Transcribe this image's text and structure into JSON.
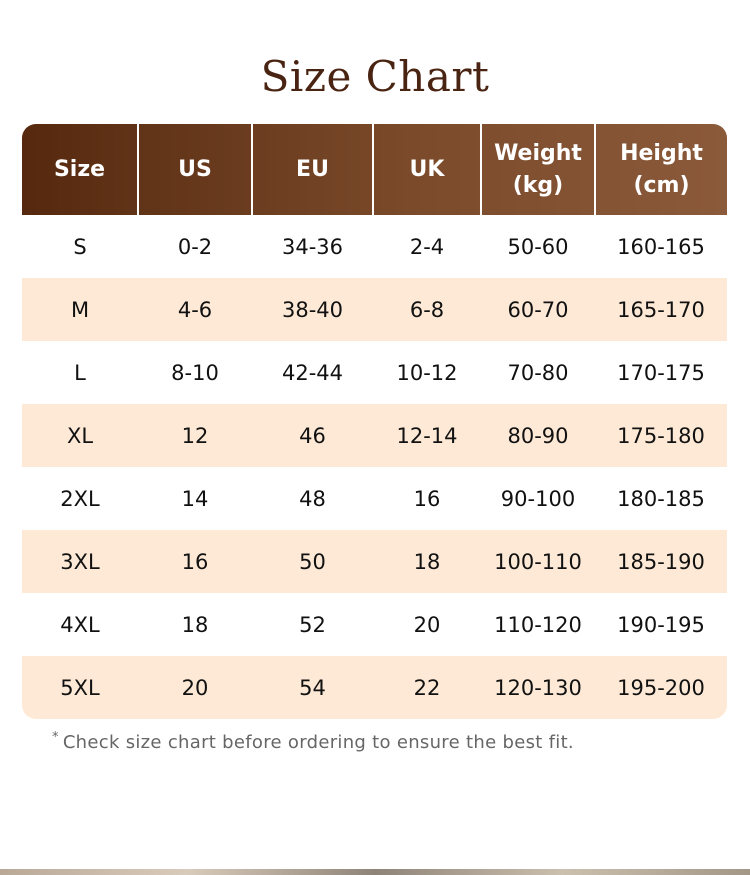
{
  "title": "Size Chart",
  "table": {
    "header": [
      "Size",
      "US",
      "EU",
      "UK",
      "Weight (kg)",
      "Height (cm)"
    ],
    "rows": [
      [
        "S",
        "0-2",
        "34-36",
        "2-4",
        "50-60",
        "160-165"
      ],
      [
        "M",
        "4-6",
        "38-40",
        "6-8",
        "60-70",
        "165-170"
      ],
      [
        "L",
        "8-10",
        "42-44",
        "10-12",
        "70-80",
        "170-175"
      ],
      [
        "XL",
        "12",
        "46",
        "12-14",
        "80-90",
        "175-180"
      ],
      [
        "2XL",
        "14",
        "48",
        "16",
        "90-100",
        "180-185"
      ],
      [
        "3XL",
        "16",
        "50",
        "18",
        "100-110",
        "185-190"
      ],
      [
        "4XL",
        "18",
        "52",
        "20",
        "110-120",
        "190-195"
      ],
      [
        "5XL",
        "20",
        "54",
        "22",
        "120-130",
        "195-200"
      ]
    ]
  },
  "note": {
    "mark": "*",
    "text": "Check size chart before ordering to ensure the best fit."
  }
}
